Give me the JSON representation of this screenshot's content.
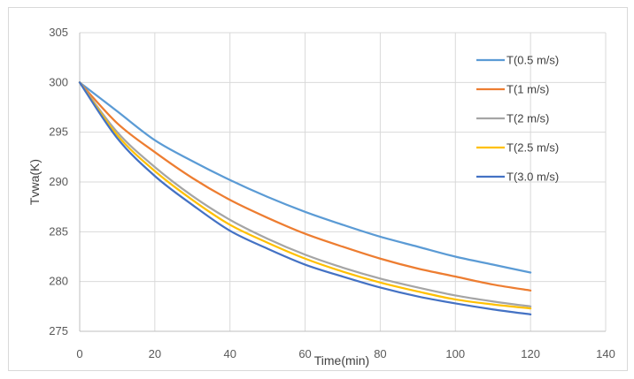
{
  "chart_data": {
    "type": "line",
    "title": "",
    "xlabel": "Time(min)",
    "ylabel": "Tvwa(K)",
    "xlim": [
      0,
      140
    ],
    "ylim": [
      275,
      305
    ],
    "x_ticks": [
      0,
      20,
      40,
      60,
      80,
      100,
      120,
      140
    ],
    "y_ticks": [
      275,
      280,
      285,
      290,
      295,
      300,
      305
    ],
    "grid": true,
    "legend_position": "right",
    "x": [
      0,
      10,
      20,
      30,
      40,
      50,
      60,
      70,
      80,
      90,
      100,
      110,
      120
    ],
    "series": [
      {
        "name": "T(0.5 m/s)",
        "color": "#5b9bd5",
        "values": [
          300.0,
          297.1,
          294.2,
          292.1,
          290.2,
          288.5,
          287.0,
          285.7,
          284.5,
          283.5,
          282.5,
          281.7,
          280.9
        ]
      },
      {
        "name": "T(1 m/s)",
        "color": "#ed7d31",
        "values": [
          300.0,
          295.9,
          293.0,
          290.4,
          288.2,
          286.4,
          284.8,
          283.5,
          282.3,
          281.3,
          280.5,
          279.7,
          279.1
        ]
      },
      {
        "name": "T(2 m/s)",
        "color": "#a5a5a5",
        "values": [
          300.0,
          295.0,
          291.5,
          288.6,
          286.2,
          284.3,
          282.7,
          281.4,
          280.3,
          279.4,
          278.6,
          278.0,
          277.5
        ]
      },
      {
        "name": "T(2.5 m/s)",
        "color": "#ffc000",
        "values": [
          300.0,
          294.7,
          291.1,
          288.2,
          285.7,
          283.9,
          282.3,
          281.0,
          279.9,
          279.0,
          278.2,
          277.7,
          277.3
        ]
      },
      {
        "name": "T(3.0 m/s)",
        "color": "#4472c4",
        "values": [
          300.0,
          294.4,
          290.6,
          287.7,
          285.1,
          283.3,
          281.7,
          280.5,
          279.4,
          278.5,
          277.8,
          277.2,
          276.7
        ]
      }
    ]
  }
}
